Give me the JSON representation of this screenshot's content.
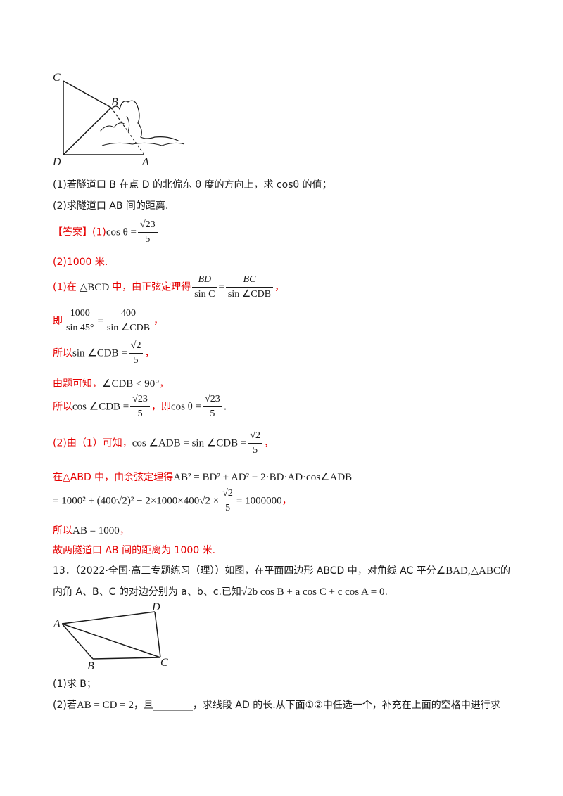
{
  "figure1": {
    "labels": {
      "C": "C",
      "B": "B",
      "D": "D",
      "A": "A"
    }
  },
  "q12": {
    "part1": "(1)若隧道口 B 在点 D 的北偏东 θ 度的方向上，求 cosθ 的值；",
    "part2": "(2)求隧道口 AB 间的距离."
  },
  "answer": {
    "tag": "【答案】",
    "ans1_prefix": "(1)",
    "ans1_lhs": "cos θ =",
    "ans1_num": "√23",
    "ans1_den": "5",
    "ans2": "(2)1000 米.",
    "s1_prefix": "(1)在",
    "s1_tri": "△BCD",
    "s1_mid": "中，由正弦定理得",
    "s1_f1_num": "BD",
    "s1_f1_den": "sin C",
    "s1_eq": "=",
    "s1_f2_num": "BC",
    "s1_f2_den": "sin ∠CDB",
    "s1_end": "，",
    "s2_prefix": "即",
    "s2_f1_num": "1000",
    "s2_f1_den": "sin 45°",
    "s2_eq": "=",
    "s2_f2_num": "400",
    "s2_f2_den": "sin ∠CDB",
    "s2_end": "，",
    "s3_prefix": "所以",
    "s3_lhs": "sin ∠CDB =",
    "s3_num": "√2",
    "s3_den": "5",
    "s3_end": "，",
    "s4_text": "由题可知，",
    "s4_math": "∠CDB < 90°",
    "s4_end": "，",
    "s5_prefix": "所以",
    "s5_lhs": "cos ∠CDB =",
    "s5_num": "√23",
    "s5_den": "5",
    "s5_mid": "，即",
    "s5_lhs2": "cos θ =",
    "s5_num2": "√23",
    "s5_den2": "5",
    "s5_end": ".",
    "s6_prefix": "(2)由（1）可知，",
    "s6_math": "cos ∠ADB = sin ∠CDB =",
    "s6_num": "√2",
    "s6_den": "5",
    "s6_end": "，",
    "s7_prefix": "在△ABD 中，由余弦定理得",
    "s7_math": "AB² = BD² + AD² − 2·BD·AD·cos∠ADB",
    "s8_math_a": "= 1000² + (400√2)² − 2×1000×400√2 ×",
    "s8_num": "√2",
    "s8_den": "5",
    "s8_math_b": "= 1000000",
    "s8_end": "，",
    "s9_prefix": "所以",
    "s9_math": "AB = 1000",
    "s9_end": "，",
    "s10": "故两隧道口 AB 间的距离为 1000 米."
  },
  "q13": {
    "line1_a": "13．（2022·全国·高三专题练习（理））如图，在平面四边形 ABCD 中，对角线 AC 平分",
    "line1_b": "∠BAD,△ABC",
    "line1_c": "的",
    "line2_a": "内角 A、B、C 的对边分别为 a、b、c.已知",
    "line2_math": "√2b cos B + a cos C + c cos A = 0",
    "line2_end": ".",
    "part1": "(1)求 B；",
    "part2_a": "(2)若",
    "part2_math": "AB = CD = 2",
    "part2_b": "，且________，求线段 AD 的长.从下面①②中任选一个，补充在上面的空格中进行求"
  },
  "figure2": {
    "labels": {
      "A": "A",
      "B": "B",
      "C": "C",
      "D": "D"
    }
  }
}
